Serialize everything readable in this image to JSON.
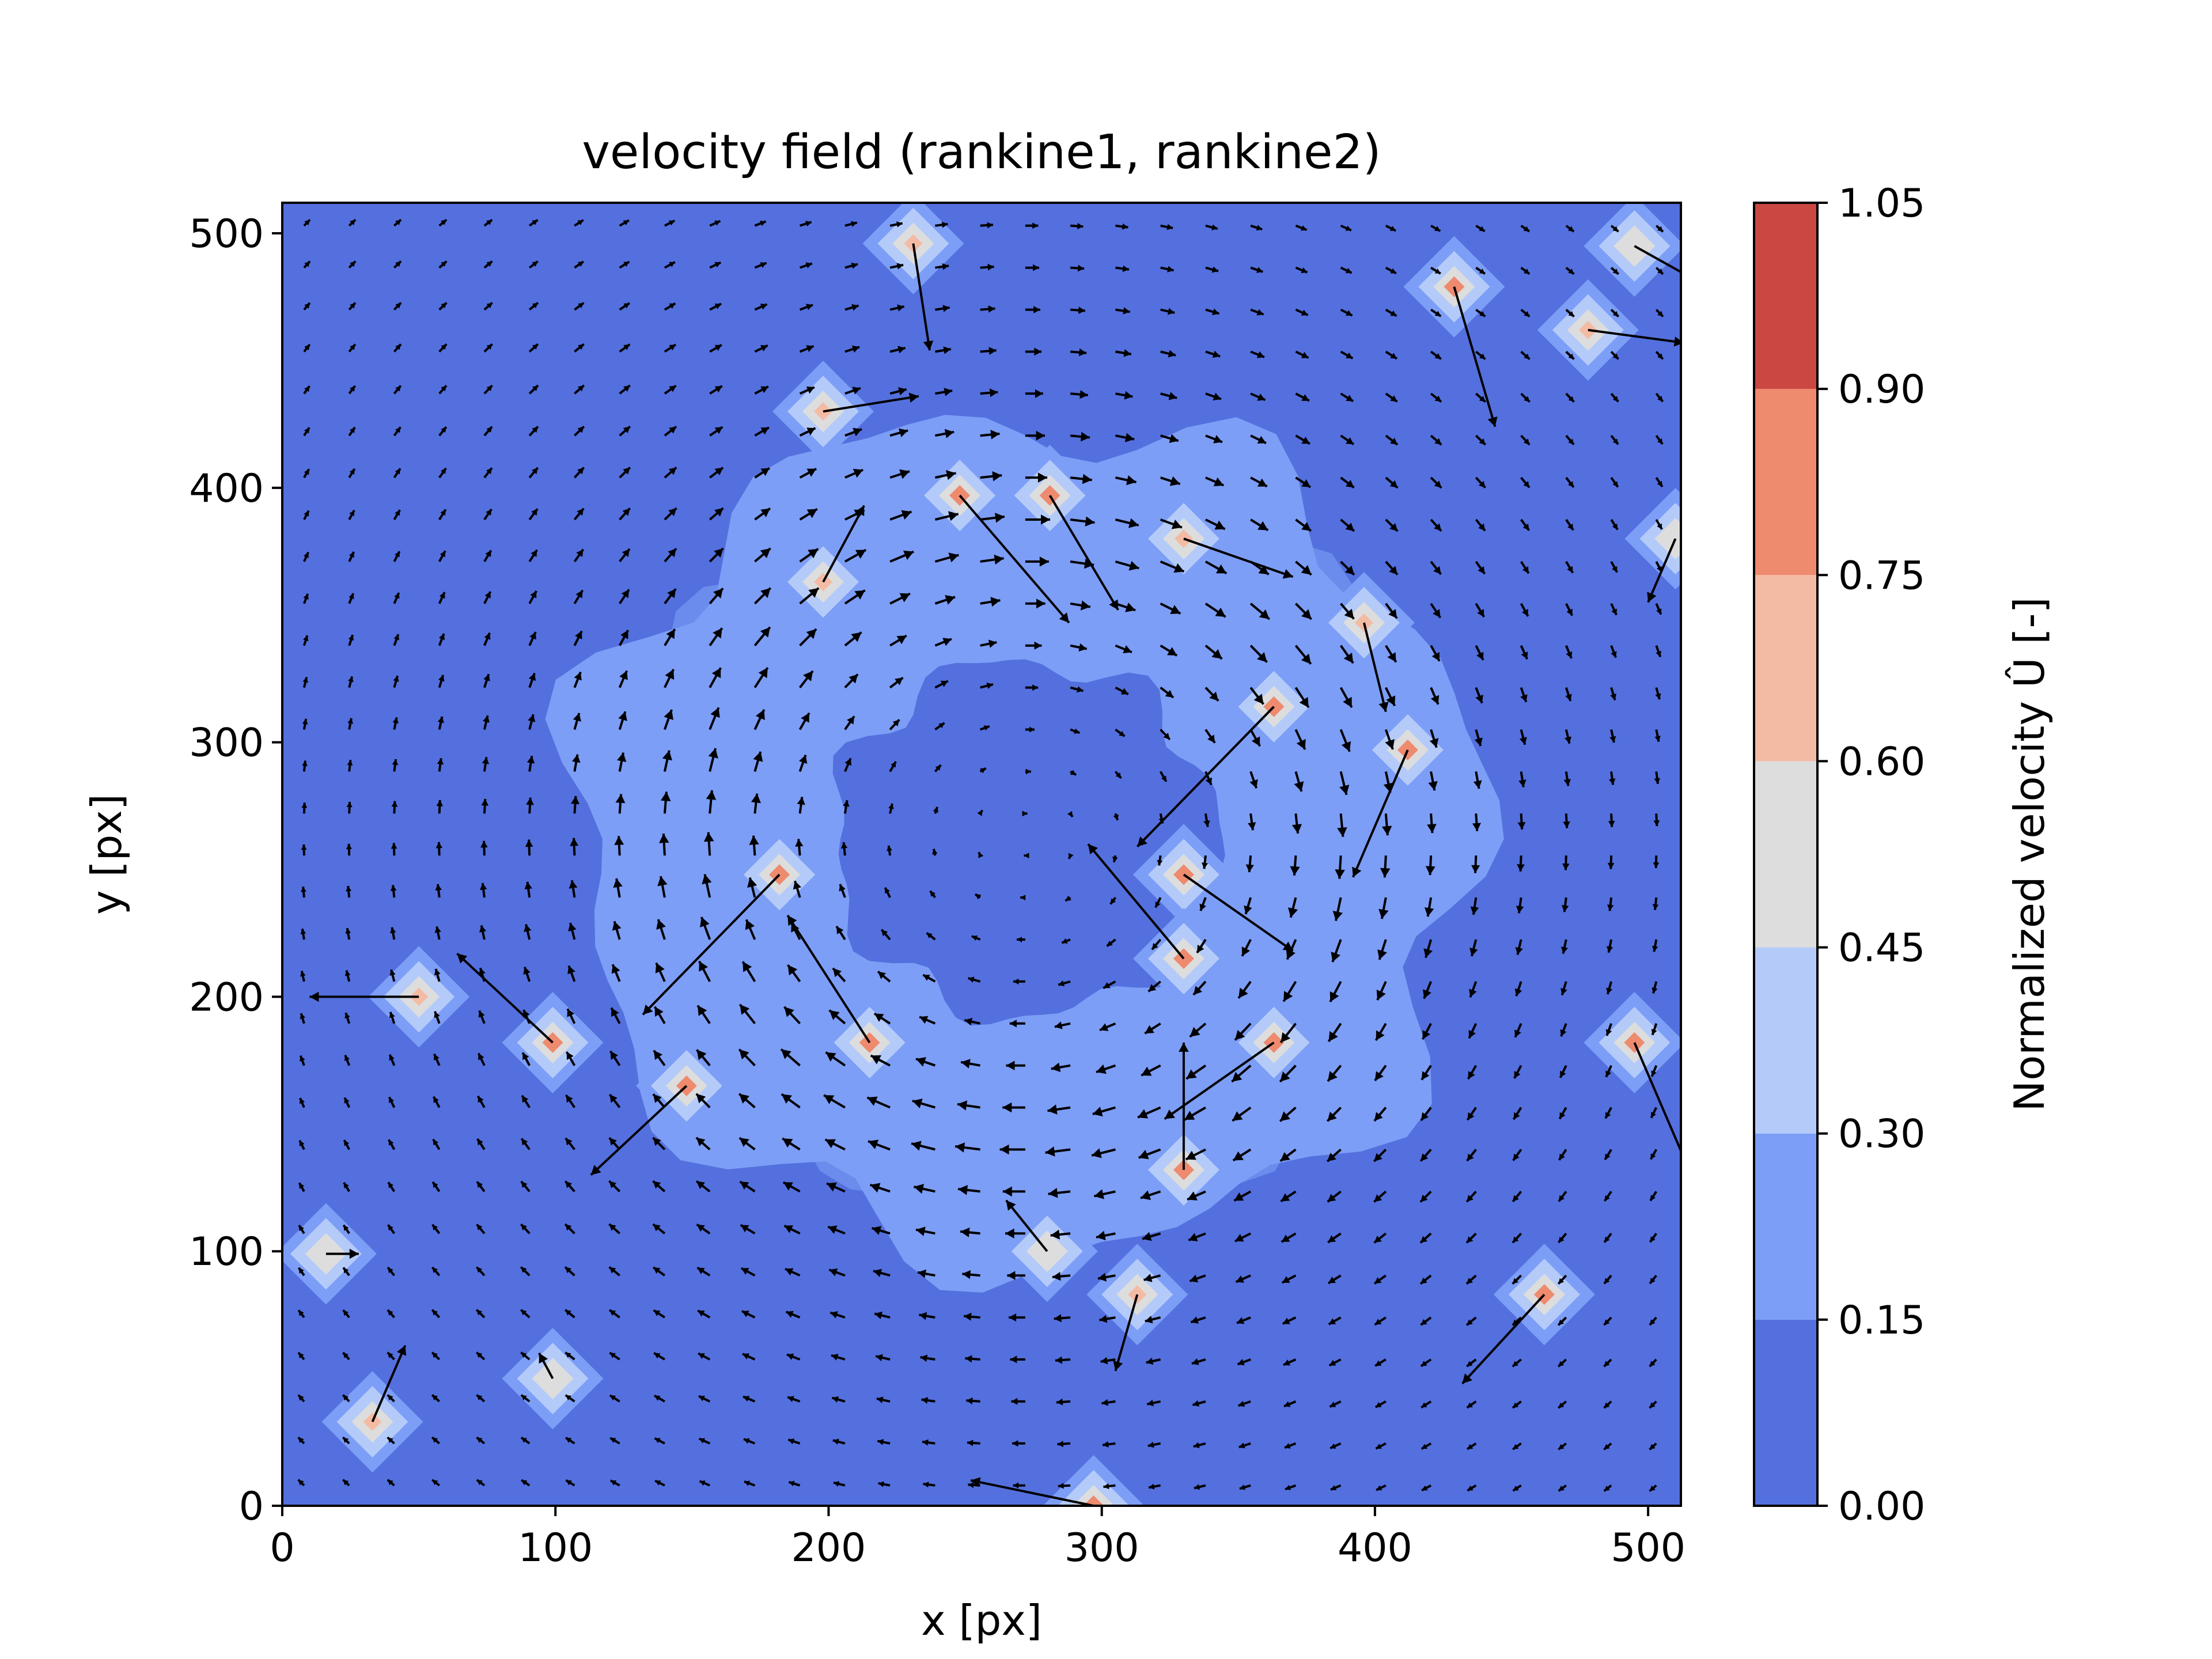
{
  "chart_data": {
    "type": "heatmap",
    "subtype": "filled contour with quiver arrows",
    "title": "velocity field (rankine1, rankine2)",
    "xlabel": "x [px]",
    "ylabel": "y [px]",
    "xlim": [
      0,
      512
    ],
    "ylim": [
      0,
      512
    ],
    "x_ticks": [
      0,
      100,
      200,
      300,
      400,
      500
    ],
    "y_ticks": [
      0,
      100,
      200,
      300,
      400,
      500
    ],
    "grid": false,
    "colormap": "coolwarm",
    "colorbar": {
      "label": "Normalized velocity Û [-]",
      "levels": [
        0.0,
        0.15,
        0.3,
        0.45,
        0.6,
        0.75,
        0.9,
        1.05
      ],
      "tick_labels": [
        "0.00",
        "0.15",
        "0.30",
        "0.45",
        "0.60",
        "0.75",
        "0.90",
        "1.05"
      ],
      "colors": [
        "#5470de",
        "#7d9ef6",
        "#b4cbfa",
        "#dddddd",
        "#f4bba4",
        "#ee8a6e",
        "#cb4741"
      ]
    },
    "vortex": {
      "center": [
        272,
        262
      ],
      "ring_inner_radius": 70,
      "ring_outer_radius": 165
    },
    "outlier_vectors": [
      {
        "x": 231,
        "y": 496,
        "dx": 6,
        "dy": -42
      },
      {
        "x": 198,
        "y": 430,
        "dx": 35,
        "dy": 6
      },
      {
        "x": 248,
        "y": 397,
        "dx": 40,
        "dy": -50
      },
      {
        "x": 281,
        "y": 397,
        "dx": 25,
        "dy": -45
      },
      {
        "x": 330,
        "y": 380,
        "dx": 40,
        "dy": -15
      },
      {
        "x": 363,
        "y": 314,
        "dx": -50,
        "dy": -55
      },
      {
        "x": 182,
        "y": 248,
        "dx": -50,
        "dy": -55
      },
      {
        "x": 198,
        "y": 363,
        "dx": 15,
        "dy": 30
      },
      {
        "x": 330,
        "y": 248,
        "dx": 40,
        "dy": -30
      },
      {
        "x": 330,
        "y": 215,
        "dx": -35,
        "dy": 45
      },
      {
        "x": 215,
        "y": 182,
        "dx": -30,
        "dy": 50
      },
      {
        "x": 148,
        "y": 165,
        "dx": -35,
        "dy": -35
      },
      {
        "x": 99,
        "y": 182,
        "dx": -35,
        "dy": 35
      },
      {
        "x": 50,
        "y": 200,
        "dx": -40,
        "dy": 0
      },
      {
        "x": 16,
        "y": 99,
        "dx": 12,
        "dy": 0
      },
      {
        "x": 33,
        "y": 33,
        "dx": 12,
        "dy": 30
      },
      {
        "x": 99,
        "y": 50,
        "dx": -5,
        "dy": 10
      },
      {
        "x": 297,
        "y": 0,
        "dx": -45,
        "dy": 10
      },
      {
        "x": 313,
        "y": 83,
        "dx": -8,
        "dy": -30
      },
      {
        "x": 462,
        "y": 83,
        "dx": -30,
        "dy": -35
      },
      {
        "x": 495,
        "y": 182,
        "dx": 20,
        "dy": -50
      },
      {
        "x": 330,
        "y": 132,
        "dx": 0,
        "dy": 50
      },
      {
        "x": 363,
        "y": 182,
        "dx": -40,
        "dy": -30
      },
      {
        "x": 396,
        "y": 347,
        "dx": 8,
        "dy": -35
      },
      {
        "x": 412,
        "y": 297,
        "dx": -20,
        "dy": -50
      },
      {
        "x": 429,
        "y": 479,
        "dx": 15,
        "dy": -55
      },
      {
        "x": 478,
        "y": 462,
        "dx": 35,
        "dy": -5
      },
      {
        "x": 495,
        "y": 495,
        "dx": 25,
        "dy": -15
      },
      {
        "x": 280,
        "y": 100,
        "dx": -15,
        "dy": 20
      },
      {
        "x": 510,
        "y": 380,
        "dx": -10,
        "dy": -25
      }
    ]
  }
}
